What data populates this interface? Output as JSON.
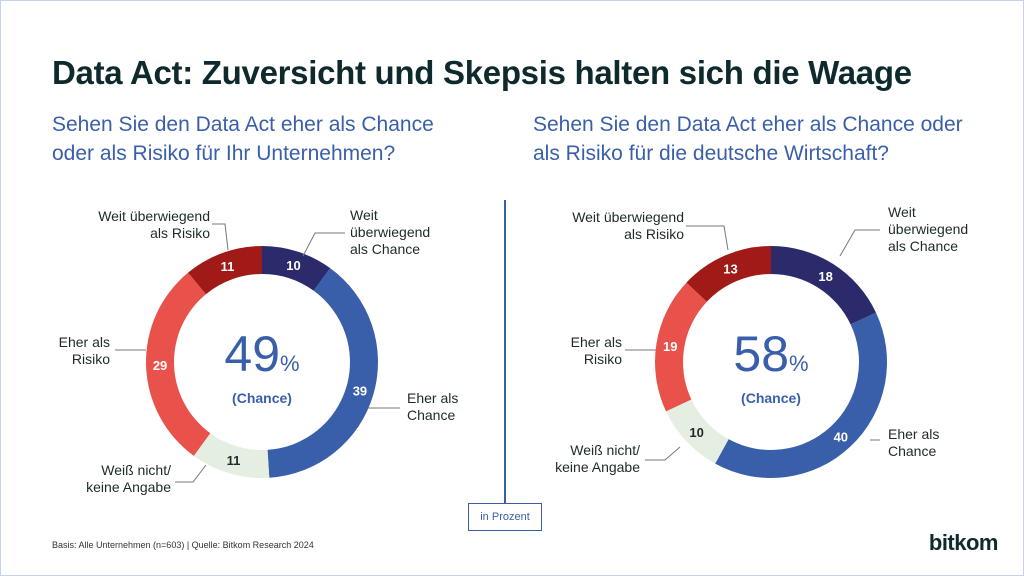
{
  "title": "Data Act: Zuversicht und Skepsis halten sich die Waage",
  "unit_label": "in Prozent",
  "footnote": "Basis: Alle Unternehmen (n=603) | Quelle: Bitkom Research 2024",
  "logo": "bitkom",
  "colors": {
    "weit_chance": "#2b2a6b",
    "eher_chance": "#3a5faa",
    "weiss_nicht": "#e5efe1",
    "eher_risiko": "#e8524a",
    "weit_risiko": "#a01b18"
  },
  "chart_data": [
    {
      "type": "pie",
      "donut": true,
      "title": "Sehen Sie den Data Act eher als Chance oder als Risiko für Ihr Unternehmen?",
      "center_value": "49",
      "center_unit": "%",
      "center_label": "(Chance)",
      "categories": [
        "Weit überwiegend als Chance",
        "Eher als Chance",
        "Weiß nicht/ keine Angabe",
        "Eher als Risiko",
        "Weit überwiegend als Risiko"
      ],
      "values": [
        10,
        39,
        11,
        29,
        11
      ]
    },
    {
      "type": "pie",
      "donut": true,
      "title": "Sehen Sie den Data Act eher als Chance oder als Risiko für die deutsche Wirtschaft?",
      "center_value": "58",
      "center_unit": "%",
      "center_label": "(Chance)",
      "categories": [
        "Weit überwiegend als Chance",
        "Eher als Chance",
        "Weiß nicht/ keine Angabe",
        "Eher als Risiko",
        "Weit überwiegend als Risiko"
      ],
      "values": [
        18,
        40,
        10,
        19,
        13
      ]
    }
  ],
  "labels": {
    "weit_chance": [
      "Weit",
      "überwiegend",
      "als Chance"
    ],
    "eher_chance": [
      "Eher als",
      "Chance"
    ],
    "weiss_nicht": [
      "Weiß nicht/",
      "keine Angabe"
    ],
    "eher_risiko": [
      "Eher als",
      "Risiko"
    ],
    "weit_risiko": [
      "Weit überwiegend",
      "als Risiko"
    ]
  }
}
